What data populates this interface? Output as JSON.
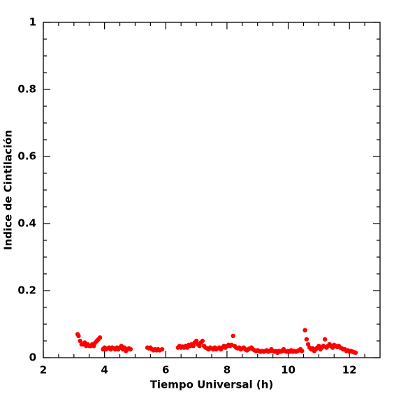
{
  "chart_data": {
    "type": "scatter",
    "x_label": "Tiempo Universal (h)",
    "y_label": "Indice de Cintilación",
    "color": "#ff0000",
    "xlim": [
      2,
      13
    ],
    "ylim": [
      0,
      1
    ],
    "xticks": [
      2,
      4,
      6,
      8,
      10,
      12
    ],
    "yticks": [
      0,
      0.2,
      0.4,
      0.6,
      0.8,
      1
    ],
    "xminorticks": [
      2.5,
      3,
      3.5,
      4.5,
      5,
      5.5,
      6.5,
      7,
      7.5,
      8.5,
      9,
      9.5,
      10.5,
      11,
      11.5,
      12.5
    ],
    "yminorticks": [
      0.05,
      0.1,
      0.15,
      0.25,
      0.3,
      0.35,
      0.45,
      0.5,
      0.55,
      0.65,
      0.7,
      0.75,
      0.85,
      0.9,
      0.95
    ],
    "x": [
      3.12,
      3.15,
      3.2,
      3.25,
      3.3,
      3.35,
      3.4,
      3.45,
      3.5,
      3.55,
      3.6,
      3.65,
      3.7,
      3.75,
      3.8,
      3.85,
      3.95,
      4.0,
      4.05,
      4.1,
      4.15,
      4.2,
      4.25,
      4.3,
      4.35,
      4.4,
      4.45,
      4.5,
      4.55,
      4.6,
      4.65,
      4.7,
      4.75,
      4.8,
      4.85,
      5.4,
      5.45,
      5.5,
      5.55,
      5.6,
      5.65,
      5.7,
      5.75,
      5.8,
      5.88,
      6.4,
      6.45,
      6.5,
      6.55,
      6.6,
      6.65,
      6.7,
      6.75,
      6.8,
      6.85,
      6.9,
      6.95,
      7.0,
      7.05,
      7.1,
      7.15,
      7.2,
      7.25,
      7.3,
      7.35,
      7.4,
      7.45,
      7.5,
      7.55,
      7.6,
      7.65,
      7.7,
      7.75,
      7.8,
      7.85,
      7.9,
      7.95,
      8.0,
      8.05,
      8.1,
      8.15,
      8.2,
      8.25,
      8.3,
      8.35,
      8.4,
      8.45,
      8.5,
      8.55,
      8.6,
      8.65,
      8.7,
      8.75,
      8.8,
      8.85,
      8.9,
      8.95,
      9.0,
      9.05,
      9.1,
      9.15,
      9.2,
      9.25,
      9.3,
      9.35,
      9.4,
      9.45,
      9.5,
      9.55,
      9.6,
      9.65,
      9.7,
      9.75,
      9.8,
      9.85,
      9.9,
      9.95,
      10.0,
      10.05,
      10.1,
      10.15,
      10.2,
      10.25,
      10.3,
      10.35,
      10.4,
      10.45,
      10.55,
      10.6,
      10.65,
      10.7,
      10.75,
      10.8,
      10.85,
      10.9,
      10.95,
      11.0,
      11.05,
      11.1,
      11.15,
      11.2,
      11.25,
      11.3,
      11.35,
      11.4,
      11.45,
      11.5,
      11.55,
      11.6,
      11.65,
      11.7,
      11.75,
      11.8,
      11.85,
      11.9,
      11.95,
      12.0,
      12.05,
      12.1,
      12.15,
      12.2
    ],
    "values": [
      0.07,
      0.065,
      0.05,
      0.04,
      0.04,
      0.045,
      0.035,
      0.04,
      0.035,
      0.035,
      0.04,
      0.035,
      0.045,
      0.05,
      0.055,
      0.06,
      0.025,
      0.03,
      0.025,
      0.028,
      0.03,
      0.025,
      0.03,
      0.028,
      0.025,
      0.03,
      0.025,
      0.03,
      0.035,
      0.025,
      0.03,
      0.02,
      0.025,
      0.028,
      0.025,
      0.03,
      0.028,
      0.03,
      0.025,
      0.022,
      0.025,
      0.022,
      0.025,
      0.022,
      0.025,
      0.03,
      0.035,
      0.03,
      0.033,
      0.03,
      0.035,
      0.03,
      0.038,
      0.035,
      0.04,
      0.035,
      0.045,
      0.05,
      0.04,
      0.035,
      0.045,
      0.05,
      0.035,
      0.03,
      0.028,
      0.025,
      0.03,
      0.028,
      0.025,
      0.03,
      0.025,
      0.028,
      0.03,
      0.025,
      0.03,
      0.035,
      0.03,
      0.035,
      0.038,
      0.035,
      0.038,
      0.065,
      0.035,
      0.03,
      0.028,
      0.03,
      0.025,
      0.028,
      0.03,
      0.025,
      0.022,
      0.025,
      0.028,
      0.03,
      0.025,
      0.022,
      0.02,
      0.022,
      0.02,
      0.018,
      0.02,
      0.018,
      0.02,
      0.022,
      0.018,
      0.02,
      0.025,
      0.02,
      0.018,
      0.02,
      0.015,
      0.02,
      0.018,
      0.02,
      0.025,
      0.02,
      0.018,
      0.02,
      0.018,
      0.022,
      0.018,
      0.02,
      0.018,
      0.02,
      0.022,
      0.025,
      0.02,
      0.082,
      0.055,
      0.04,
      0.03,
      0.025,
      0.028,
      0.02,
      0.025,
      0.03,
      0.035,
      0.025,
      0.03,
      0.035,
      0.055,
      0.03,
      0.035,
      0.04,
      0.035,
      0.03,
      0.038,
      0.035,
      0.032,
      0.035,
      0.03,
      0.028,
      0.025,
      0.025,
      0.02,
      0.022,
      0.018,
      0.02,
      0.018,
      0.016,
      0.015
    ]
  }
}
